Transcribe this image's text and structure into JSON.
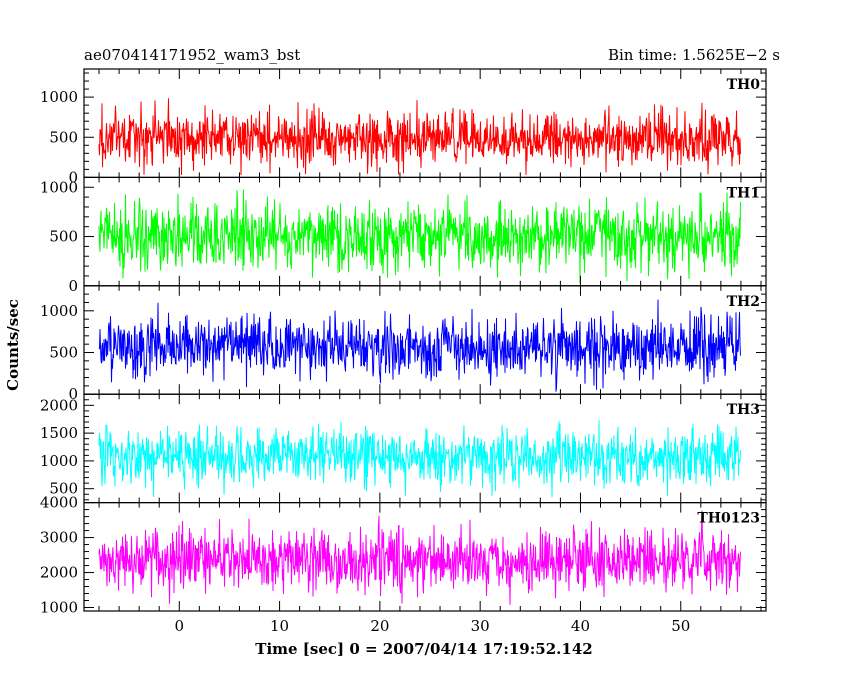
{
  "header": {
    "title": "ae070414171952_wam3_bst",
    "bin_time": "Bin time: 1.5625E−2 s"
  },
  "chart_data": {
    "type": "line",
    "xlabel": "Time [sec] 0 = 2007/04/14 17:19:52.142",
    "ylabel": "Counts/sec",
    "xlim": [
      -9.5,
      58.5
    ],
    "data_xrange": [
      -8,
      56
    ],
    "x_major_ticks": [
      0,
      10,
      20,
      30,
      40,
      50
    ],
    "x_minor_step": 2,
    "panels": [
      {
        "name": "TH0",
        "color": "#ff0000",
        "ylim": [
          0,
          1350
        ],
        "y_ticks": [
          0,
          500,
          1000
        ],
        "y_minor_step": 100,
        "mean": 490,
        "noise": 170,
        "floor": 30,
        "ceiling": 1350
      },
      {
        "name": "TH1",
        "color": "#00ff00",
        "ylim": [
          0,
          1100
        ],
        "y_ticks": [
          0,
          500,
          1000
        ],
        "y_minor_step": 100,
        "mean": 500,
        "noise": 170,
        "floor": 20,
        "ceiling": 1100
      },
      {
        "name": "TH2",
        "color": "#0000ff",
        "ylim": [
          0,
          1300
        ],
        "y_ticks": [
          0,
          500,
          1000
        ],
        "y_minor_step": 100,
        "mean": 560,
        "noise": 185,
        "floor": 30,
        "ceiling": 1300
      },
      {
        "name": "TH3",
        "color": "#00ffff",
        "ylim": [
          250,
          2200
        ],
        "y_ticks": [
          500,
          1000,
          1500,
          2000
        ],
        "y_minor_step": 100,
        "mean": 1080,
        "noise": 260,
        "floor": 300,
        "ceiling": 2200
      },
      {
        "name": "TH0123",
        "color": "#ff00ff",
        "ylim": [
          900,
          4000
        ],
        "y_ticks": [
          1000,
          2000,
          3000,
          4000
        ],
        "y_minor_step": 200,
        "mean": 2350,
        "noise": 440,
        "floor": 950,
        "ceiling": 4000
      }
    ]
  }
}
